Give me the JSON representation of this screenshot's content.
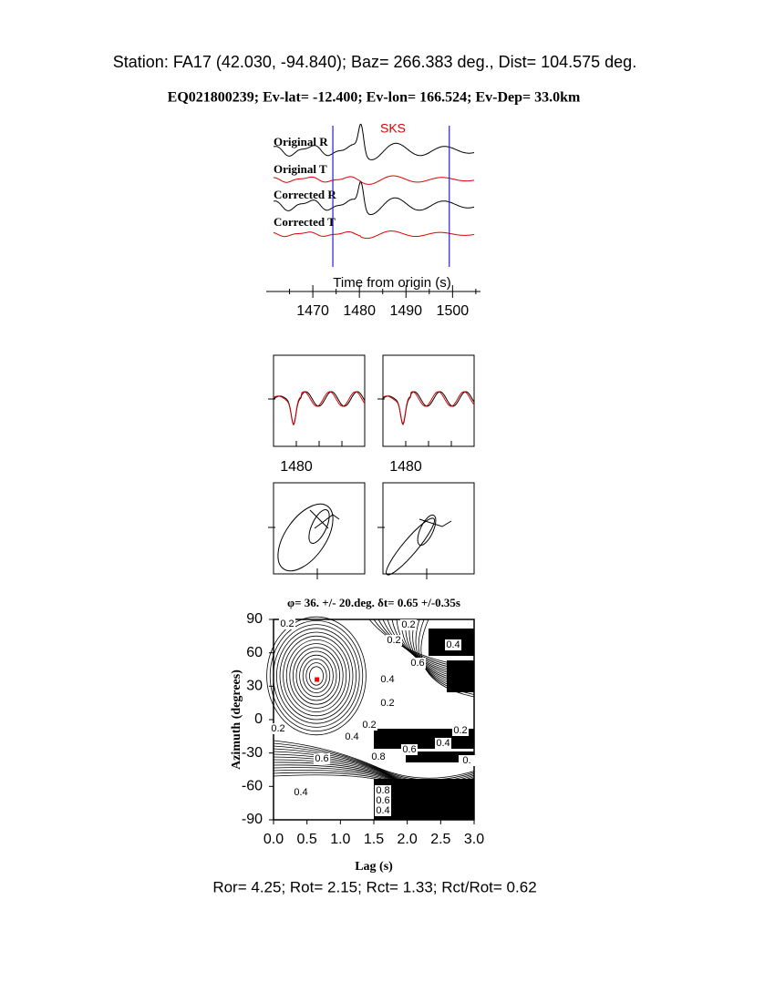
{
  "header": {
    "station": "Station: FA17 (42.030,  -94.840); Baz=  266.383 deg., Dist=  104.575 deg.",
    "event": "EQ021800239; Ev-lat= -12.400; Ev-lon= 166.524; Ev-Dep= 33.0km"
  },
  "chart_data": [
    {
      "type": "traces",
      "trace_labels": [
        "Original R",
        "Original T",
        "Corrected R",
        "Corrected T"
      ],
      "phase": "SKS",
      "xlabel": "Time from origin (s)",
      "xlim": [
        1460,
        1506
      ],
      "xticks": [
        1470,
        1480,
        1490,
        1500
      ],
      "window": [
        1474.3,
        1499.3
      ],
      "window_color": "#2222cc"
    },
    {
      "type": "waveform-pair",
      "labels": [
        "1480",
        "1480"
      ]
    },
    {
      "type": "contour",
      "title": "φ= 36. +/- 20.deg. δt= 0.65 +/-0.35s",
      "xlabel": "Lag (s)",
      "ylabel": "Azimuth (degrees)",
      "xlim": [
        0,
        3
      ],
      "ylim": [
        -90,
        90
      ],
      "xticks": [
        {
          "value": 0,
          "label": "0.0"
        },
        0.5,
        {
          "value": 1,
          "label": "1.0"
        },
        1.5,
        {
          "value": 2,
          "label": "2.0"
        },
        2.5,
        {
          "value": 3,
          "label": "3.0"
        }
      ],
      "yticks": [
        90,
        60,
        30,
        0,
        -30,
        -60,
        -90
      ],
      "x": [
        0.65
      ],
      "y": [
        36
      ],
      "color": "#ff0000",
      "contour_labels": [
        "0.2",
        "0.2",
        "0.2",
        "0.6",
        "0.4",
        "0.4",
        "0.2",
        "0.2",
        "0.2",
        "0.4",
        "0.2",
        "0.8",
        "0.6",
        "0.4",
        "0.",
        "0.6",
        "0.4",
        "0.8",
        "0.6",
        "0.4"
      ]
    }
  ],
  "footer": "Ror= 4.25; Rot= 2.15; Rct= 1.33; Rct/Rot= 0.62"
}
